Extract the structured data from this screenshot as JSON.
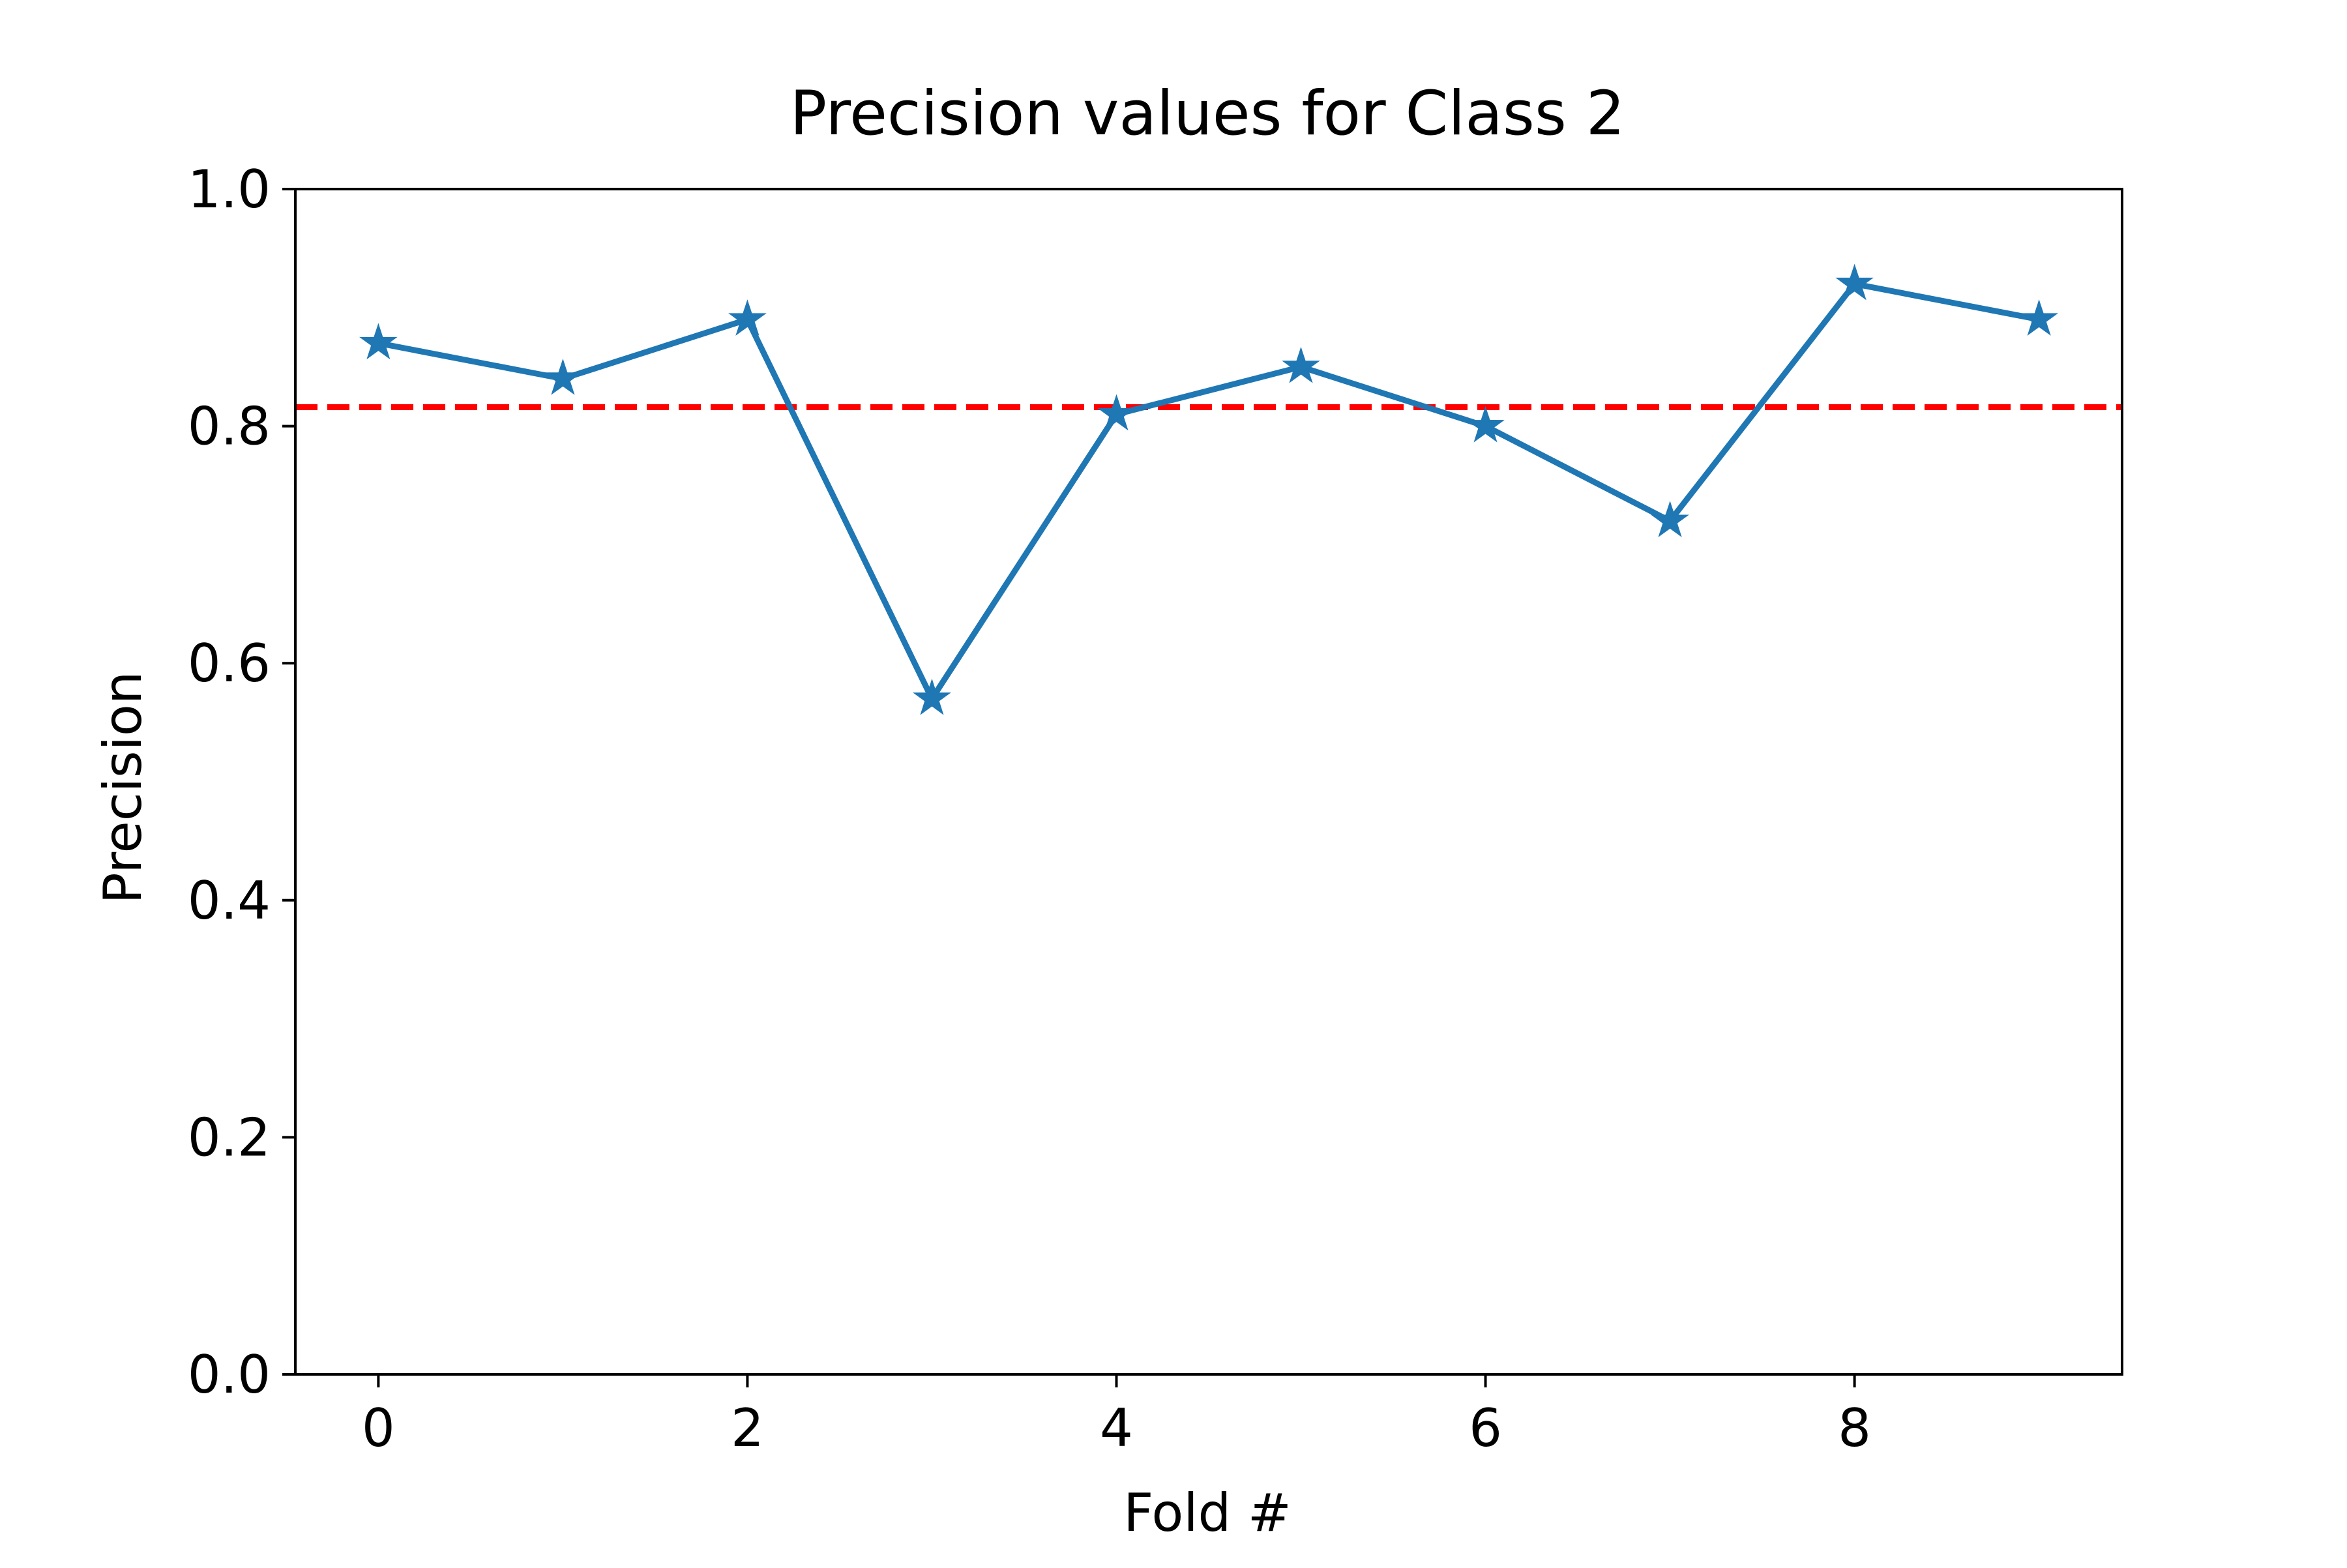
{
  "chart_data": {
    "type": "line",
    "title": "Precision values for Class 2",
    "xlabel": "Fold #",
    "ylabel": "Precision",
    "x": [
      0,
      1,
      2,
      3,
      4,
      5,
      6,
      7,
      8,
      9
    ],
    "series": [
      {
        "values": [
          0.87,
          0.84,
          0.89,
          0.57,
          0.81,
          0.85,
          0.8,
          0.72,
          0.92,
          0.89
        ],
        "color": "#1f77b4",
        "marker": "star",
        "linestyle": "solid"
      }
    ],
    "reference_line": {
      "y": 0.816,
      "color": "#ff0000",
      "linestyle": "dashed"
    },
    "xlim": [
      -0.45,
      9.45
    ],
    "ylim": [
      0.0,
      1.0
    ],
    "xticks": [
      0,
      2,
      4,
      6,
      8
    ],
    "xtick_labels": [
      "0",
      "2",
      "4",
      "6",
      "8"
    ],
    "yticks": [
      0.0,
      0.2,
      0.4,
      0.6,
      0.8,
      1.0
    ],
    "ytick_labels": [
      "0.0",
      "0.2",
      "0.4",
      "0.6",
      "0.8",
      "1.0"
    ],
    "grid": false,
    "legend": "none"
  }
}
